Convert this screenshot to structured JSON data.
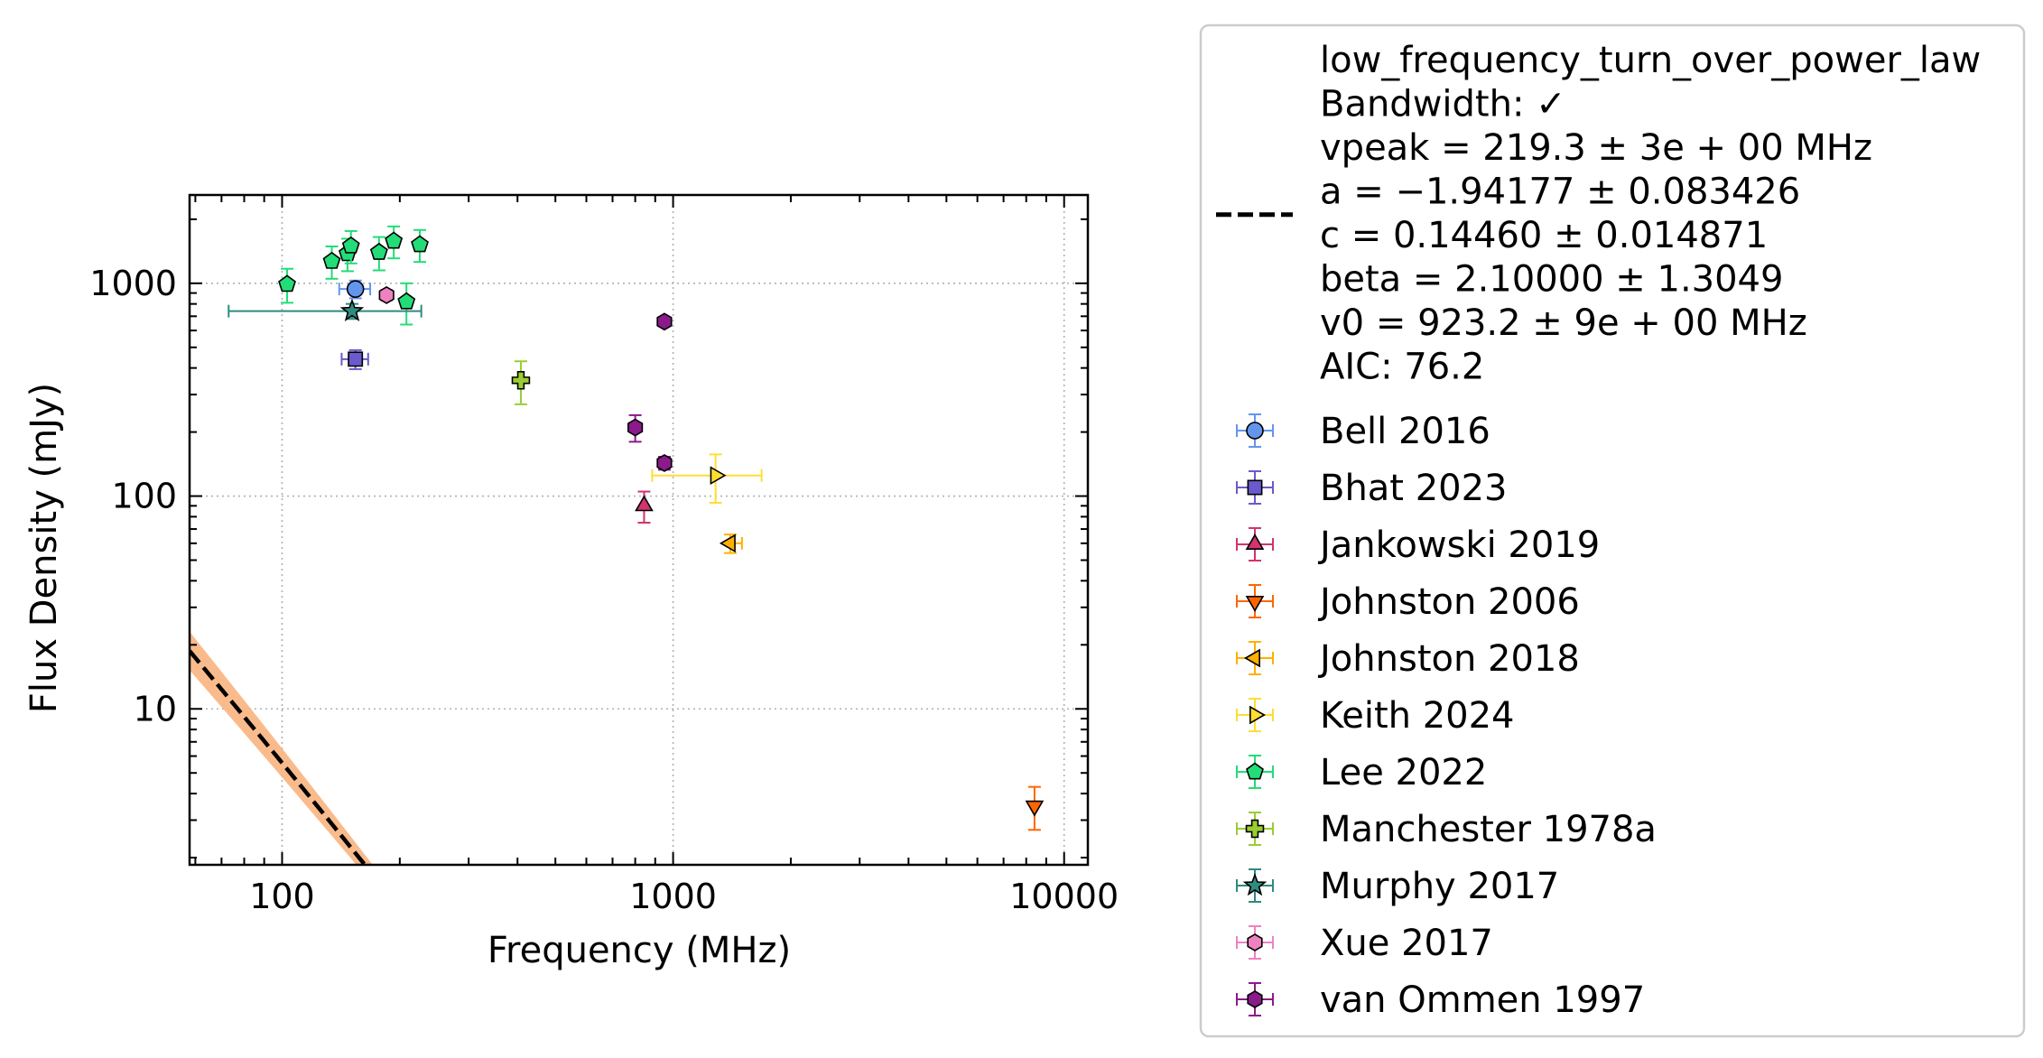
{
  "chart_data": {
    "type": "scatter",
    "xlabel": "Frequency (MHz)",
    "ylabel": "Flux Density (mJy)",
    "xscale": "log",
    "yscale": "log",
    "xlim": [
      58,
      11500
    ],
    "ylim": [
      1.85,
      2600
    ],
    "grid": true,
    "legend_position": "outside-right",
    "x_ticks": [
      {
        "value": 100,
        "label": "100"
      },
      {
        "value": 1000,
        "label": "1000"
      },
      {
        "value": 10000,
        "label": "10000"
      }
    ],
    "y_ticks": [
      {
        "value": 10,
        "label": "10"
      },
      {
        "value": 100,
        "label": "100"
      },
      {
        "value": 1000,
        "label": "1000"
      }
    ],
    "fit": {
      "model_label": "low_frequency_turn_over_power_law",
      "lines": [
        "low_frequency_turn_over_power_law",
        "Bandwidth: ✓",
        "vpeak = 219.3 ± 3e + 00 MHz",
        "a = −1.94177 ± 0.083426",
        "c = 0.14460 ± 0.014871",
        "beta = 2.10000 ± 1.3049",
        "v0 = 923.2 ± 9e + 00 MHz",
        "AIC: 76.2"
      ],
      "vpeak": 219.3,
      "a": -1.94177,
      "c": 0.1446,
      "beta": 2.1,
      "v0": 923.2,
      "line_color": "#000000",
      "band_color": "#f9b47f"
    },
    "series": [
      {
        "name": "Bell 2016",
        "marker": "circle",
        "color": "#6495ed",
        "points": [
          {
            "x": 154,
            "y": 940,
            "xerr": [
              14,
              14
            ],
            "yerr": [
              90,
              90
            ]
          }
        ]
      },
      {
        "name": "Bhat 2023",
        "marker": "square",
        "color": "#6a5acd",
        "points": [
          {
            "x": 154,
            "y": 440,
            "xerr": [
              12,
              12
            ],
            "yerr": [
              45,
              45
            ]
          }
        ]
      },
      {
        "name": "Jankowski 2019",
        "marker": "triangle-up",
        "color": "#d1346f",
        "points": [
          {
            "x": 843,
            "y": 90,
            "xerr": [
              0,
              0
            ],
            "yerr": [
              15,
              15
            ]
          }
        ]
      },
      {
        "name": "Johnston 2006",
        "marker": "triangle-down",
        "color": "#ff6600",
        "points": [
          {
            "x": 8400,
            "y": 3.5,
            "xerr": [
              0,
              0
            ],
            "yerr": [
              0.8,
              0.8
            ]
          }
        ]
      },
      {
        "name": "Johnston 2018",
        "marker": "triangle-left",
        "color": "#ffb000",
        "points": [
          {
            "x": 1400,
            "y": 60,
            "xerr": [
              0,
              100
            ],
            "yerr": [
              6,
              6
            ]
          }
        ]
      },
      {
        "name": "Keith 2024",
        "marker": "triangle-right",
        "color": "#ffdd33",
        "points": [
          {
            "x": 1284,
            "y": 125,
            "xerr": [
              400,
              400
            ],
            "yerr": [
              32,
              32
            ]
          }
        ]
      },
      {
        "name": "Lee 2022",
        "marker": "pentagon",
        "color": "#22dd77",
        "points": [
          {
            "x": 103,
            "y": 990,
            "xerr": [
              0,
              0
            ],
            "yerr": [
              180,
              180
            ]
          },
          {
            "x": 134,
            "y": 1270,
            "xerr": [
              0,
              0
            ],
            "yerr": [
              220,
              220
            ]
          },
          {
            "x": 147,
            "y": 1380,
            "xerr": [
              0,
              0
            ],
            "yerr": [
              240,
              240
            ]
          },
          {
            "x": 150,
            "y": 1500,
            "xerr": [
              0,
              0
            ],
            "yerr": [
              260,
              260
            ]
          },
          {
            "x": 177,
            "y": 1400,
            "xerr": [
              0,
              0
            ],
            "yerr": [
              250,
              250
            ]
          },
          {
            "x": 193,
            "y": 1580,
            "xerr": [
              0,
              0
            ],
            "yerr": [
              270,
              270
            ]
          },
          {
            "x": 208,
            "y": 820,
            "xerr": [
              0,
              0
            ],
            "yerr": [
              180,
              180
            ]
          },
          {
            "x": 225,
            "y": 1520,
            "xerr": [
              0,
              0
            ],
            "yerr": [
              260,
              260
            ]
          }
        ]
      },
      {
        "name": "Manchester 1978a",
        "marker": "plus",
        "color": "#9acd32",
        "points": [
          {
            "x": 408,
            "y": 350,
            "xerr": [
              0,
              0
            ],
            "yerr": [
              80,
              80
            ]
          }
        ]
      },
      {
        "name": "Murphy 2017",
        "marker": "star",
        "color": "#2e8b7f",
        "points": [
          {
            "x": 151,
            "y": 740,
            "xerr": [
              78,
              76
            ],
            "yerr": [
              60,
              60
            ]
          }
        ]
      },
      {
        "name": "Xue 2017",
        "marker": "hexagon",
        "color": "#ee82c0",
        "points": [
          {
            "x": 185,
            "y": 880,
            "xerr": [
              0,
              0
            ],
            "yerr": [
              50,
              50
            ]
          }
        ]
      },
      {
        "name": "van Ommen 1997",
        "marker": "hexagon",
        "color": "#8b1a8b",
        "points": [
          {
            "x": 800,
            "y": 210,
            "xerr": [
              0,
              0
            ],
            "yerr": [
              30,
              30
            ]
          },
          {
            "x": 950,
            "y": 143,
            "xerr": [
              0,
              0
            ],
            "yerr": [
              10,
              10
            ]
          },
          {
            "x": 950,
            "y": 660,
            "xerr": [
              0,
              0
            ],
            "yerr": [
              30,
              30
            ]
          }
        ]
      }
    ]
  }
}
